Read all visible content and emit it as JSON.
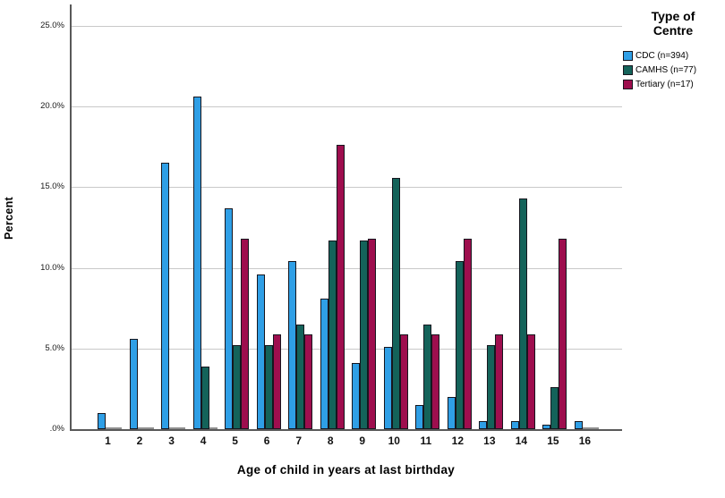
{
  "chart_data": {
    "type": "bar",
    "title": "",
    "xlabel": "Age of child in years at last birthday",
    "ylabel": "Percent",
    "categories": [
      "1",
      "2",
      "3",
      "4",
      "5",
      "6",
      "7",
      "8",
      "9",
      "10",
      "11",
      "12",
      "13",
      "14",
      "15",
      "16"
    ],
    "series": [
      {
        "name": "CDC (n=394)",
        "color": "#2f9fe6",
        "values": [
          1.0,
          5.6,
          16.5,
          20.6,
          13.7,
          9.6,
          10.4,
          8.1,
          4.1,
          5.1,
          1.5,
          2.0,
          0.5,
          0.5,
          0.3,
          0.5
        ]
      },
      {
        "name": "CAMHS (n=77)",
        "color": "#14635a",
        "values": [
          0,
          0,
          0,
          3.9,
          5.2,
          5.2,
          6.5,
          11.7,
          11.7,
          15.6,
          6.5,
          10.4,
          5.2,
          14.3,
          2.6,
          0
        ]
      },
      {
        "name": "Tertiary (n=17)",
        "color": "#9e0e4e",
        "values": [
          0,
          0,
          0,
          0,
          11.8,
          5.9,
          5.9,
          17.6,
          11.8,
          5.9,
          5.9,
          11.8,
          5.9,
          5.9,
          11.8,
          0
        ]
      }
    ],
    "ylim": [
      0,
      25
    ],
    "yticks": [
      {
        "value": 25,
        "label": "25.0%"
      },
      {
        "value": 20,
        "label": "20.0%"
      },
      {
        "value": 15,
        "label": "15.0%"
      },
      {
        "value": 10,
        "label": "10.0%"
      },
      {
        "value": 5,
        "label": "5.0%"
      },
      {
        "value": 0,
        "label": ".0%"
      }
    ],
    "grid": true,
    "legend_title": "Type of Centre",
    "legend_position": "right"
  },
  "colors": {
    "axis": "#595959",
    "gridline": "#c9c9c9",
    "bar_outline": "#16161e",
    "zero_bar": "#8f8f8f",
    "background": "#ffffff"
  }
}
